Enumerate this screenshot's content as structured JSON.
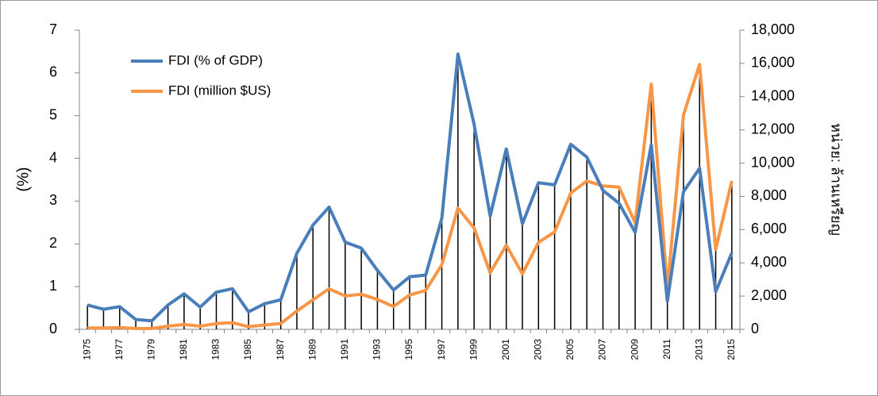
{
  "chart_data": {
    "type": "line",
    "ylabel": "(%)",
    "y2label": "หน่วย: ล้านเหรียญ",
    "categories": [
      "1975",
      null,
      "1977",
      null,
      "1979",
      null,
      "1981",
      null,
      "1983",
      null,
      "1985",
      null,
      "1987",
      null,
      "1989",
      null,
      "1991",
      null,
      "1993",
      null,
      "1995",
      null,
      "1997",
      null,
      "1999",
      null,
      "2001",
      null,
      "2003",
      null,
      "2005",
      null,
      "2007",
      null,
      "2009",
      null,
      "2011",
      null,
      "2013",
      null,
      "2015"
    ],
    "series": [
      {
        "name": "FDI (% of GDP)",
        "color": "#4a7ebb",
        "values": [
          0.57,
          0.47,
          0.53,
          0.23,
          0.2,
          0.57,
          0.83,
          0.52,
          0.87,
          0.95,
          0.41,
          0.6,
          0.69,
          1.78,
          2.44,
          2.86,
          2.04,
          1.9,
          1.38,
          0.92,
          1.23,
          1.27,
          2.6,
          6.44,
          4.8,
          2.65,
          4.22,
          2.47,
          3.43,
          3.38,
          4.33,
          4.03,
          3.25,
          2.95,
          2.27,
          4.32,
          0.66,
          3.22,
          3.77,
          0.88,
          1.79
        ]
      },
      {
        "name": "FDI (million $US)",
        "color": "#f79646",
        "axis": "y2",
        "values": [
          86,
          80,
          106,
          50,
          55,
          190,
          290,
          190,
          350,
          400,
          160,
          260,
          350,
          1100,
          1780,
          2440,
          2010,
          2110,
          1800,
          1370,
          2070,
          2340,
          3880,
          7300,
          6100,
          3400,
          5060,
          3340,
          5230,
          5860,
          8200,
          8920,
          8630,
          8560,
          6410,
          14750,
          2470,
          12900,
          15940,
          4810,
          8930
        ]
      }
    ],
    "ylim": [
      0,
      7
    ],
    "yticks": [
      0,
      1,
      2,
      3,
      4,
      5,
      6,
      7
    ],
    "y2lim": [
      0,
      18000
    ],
    "y2ticks": [
      0,
      {
        "value": 2000,
        "label": "2,000"
      },
      {
        "value": 4000,
        "label": "4,000"
      },
      {
        "value": 6000,
        "label": "6,000"
      },
      {
        "value": 8000,
        "label": "8,000"
      },
      {
        "value": 10000,
        "label": "10,000"
      },
      {
        "value": 12000,
        "label": "12,000"
      },
      {
        "value": 14000,
        "label": "14,000"
      },
      {
        "value": 16000,
        "label": "16,000"
      },
      {
        "value": 18000,
        "label": "18,000"
      }
    ],
    "drop_lines": true,
    "legend": "upper left"
  }
}
